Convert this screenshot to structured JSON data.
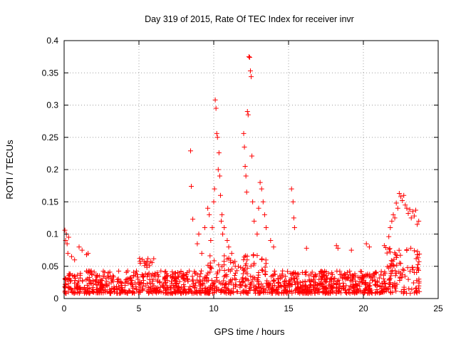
{
  "chart_data": {
    "type": "scatter",
    "title": "Day 319 of 2015, Rate Of TEC Index for receiver invr",
    "xlabel": "GPS time / hours",
    "ylabel": "ROTI / TECUs",
    "xlim": [
      0,
      25
    ],
    "ylim": [
      0,
      0.4
    ],
    "xticks": [
      0,
      5,
      10,
      15,
      20,
      25
    ],
    "xtick_labels": [
      "0",
      "5",
      "10",
      "15",
      "20",
      "25"
    ],
    "yticks": [
      0,
      0.05,
      0.1,
      0.15,
      0.2,
      0.25,
      0.3,
      0.35,
      0.4
    ],
    "ytick_labels": [
      "0",
      "0.05",
      "0.1",
      "0.15",
      "0.2",
      "0.25",
      "0.3",
      "0.35",
      "0.4"
    ],
    "grid": true,
    "marker": "+",
    "color": "#ff0000",
    "series": [
      {
        "name": "ROTI",
        "x": [
          0.05,
          0.1,
          0.15,
          0.2,
          0.25,
          0.3,
          0.5,
          0.7,
          1.0,
          1.2,
          1.5,
          1.6,
          8.45,
          8.5,
          8.6,
          8.9,
          9.0,
          9.2,
          9.4,
          9.6,
          9.7,
          9.8,
          9.9,
          10.0,
          10.05,
          10.1,
          10.15,
          10.2,
          10.25,
          10.3,
          10.35,
          10.4,
          10.45,
          10.5,
          10.55,
          10.6,
          10.7,
          10.9,
          11.0,
          11.2,
          12.0,
          12.05,
          12.1,
          12.15,
          12.2,
          12.25,
          12.3,
          12.35,
          12.4,
          12.45,
          12.5,
          12.55,
          12.6,
          12.7,
          12.9,
          13.0,
          13.1,
          13.2,
          13.3,
          13.4,
          13.5,
          13.8,
          14.0,
          15.2,
          15.3,
          15.35,
          15.4,
          16.2,
          18.2,
          18.3,
          19.2,
          20.2,
          20.4,
          21.4,
          21.5,
          21.7,
          21.8,
          21.9,
          22.0,
          22.1,
          22.2,
          22.3,
          22.4,
          22.5,
          22.6,
          22.7,
          22.8,
          22.9,
          23.0,
          23.1,
          23.2,
          23.3,
          23.4,
          23.5,
          23.6,
          23.7
        ],
        "y": [
          0.106,
          0.09,
          0.1,
          0.085,
          0.07,
          0.095,
          0.065,
          0.06,
          0.08,
          0.075,
          0.068,
          0.07,
          0.229,
          0.174,
          0.123,
          0.085,
          0.1,
          0.07,
          0.11,
          0.14,
          0.13,
          0.09,
          0.11,
          0.15,
          0.17,
          0.308,
          0.295,
          0.256,
          0.25,
          0.2,
          0.226,
          0.19,
          0.16,
          0.12,
          0.13,
          0.1,
          0.11,
          0.09,
          0.08,
          0.07,
          0.256,
          0.235,
          0.205,
          0.19,
          0.165,
          0.29,
          0.285,
          0.375,
          0.374,
          0.353,
          0.344,
          0.221,
          0.15,
          0.12,
          0.1,
          0.14,
          0.18,
          0.17,
          0.15,
          0.13,
          0.11,
          0.09,
          0.08,
          0.17,
          0.15,
          0.125,
          0.11,
          0.078,
          0.082,
          0.078,
          0.075,
          0.085,
          0.08,
          0.082,
          0.079,
          0.096,
          0.11,
          0.12,
          0.13,
          0.125,
          0.148,
          0.14,
          0.163,
          0.158,
          0.152,
          0.16,
          0.145,
          0.14,
          0.132,
          0.138,
          0.125,
          0.135,
          0.128,
          0.137,
          0.115,
          0.12
        ],
        "baseline_points": 1400
      }
    ]
  }
}
